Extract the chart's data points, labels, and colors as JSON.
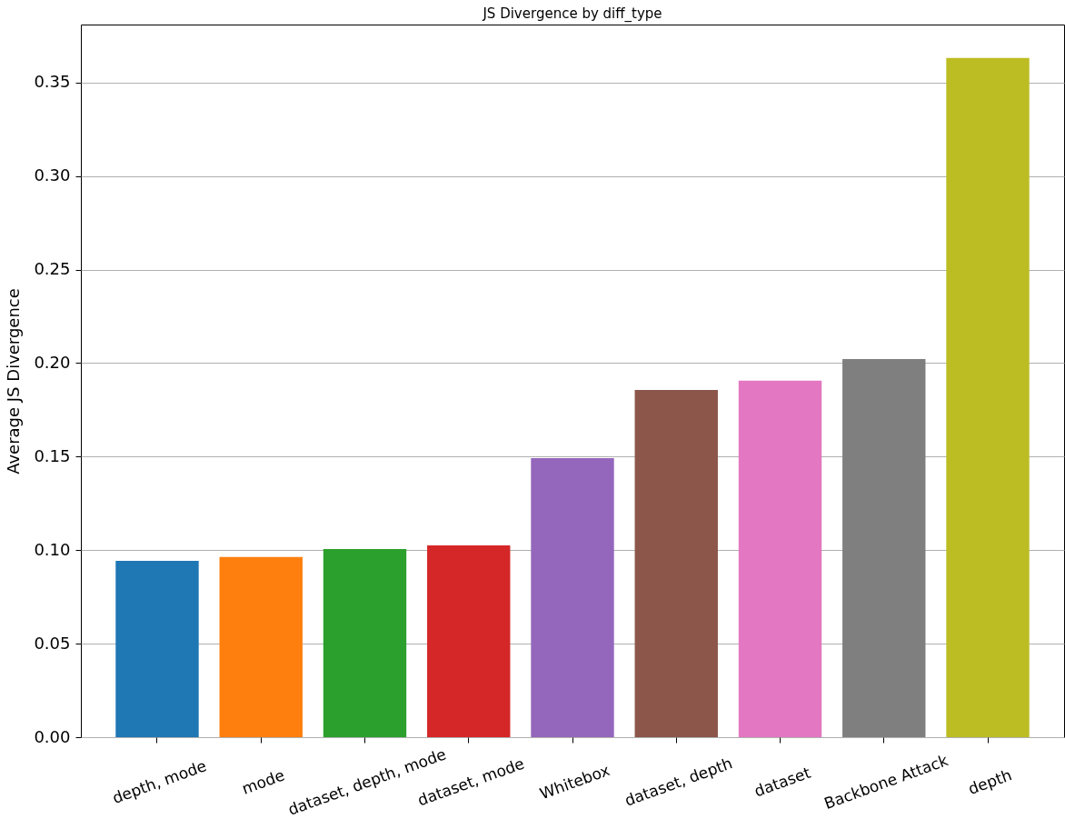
{
  "chart_data": {
    "type": "bar",
    "title": "JS Divergence by diff_type",
    "ylabel": "Average JS Divergence",
    "categories": [
      "depth, mode",
      "mode",
      "dataset, depth, mode",
      "dataset, mode",
      "Whitebox",
      "dataset, depth",
      "dataset",
      "Backbone Attack",
      "depth"
    ],
    "values": [
      0.0943,
      0.0963,
      0.1006,
      0.1026,
      0.1492,
      0.1857,
      0.1906,
      0.2022,
      0.3631
    ],
    "colors": [
      "#1f77b4",
      "#ff7f0e",
      "#2ca02c",
      "#d62728",
      "#9467bd",
      "#8c564b",
      "#e377c2",
      "#7f7f7f",
      "#bcbd22"
    ],
    "ylim": [
      0,
      0.381
    ],
    "yticks": [
      {
        "value": 0,
        "label": "0.00"
      },
      {
        "value": 0.05,
        "label": "0.05"
      },
      {
        "value": 0.1,
        "label": "0.10"
      },
      {
        "value": 0.15,
        "label": "0.15"
      },
      {
        "value": 0.2,
        "label": "0.20"
      },
      {
        "value": 0.25,
        "label": "0.25"
      },
      {
        "value": 0.3,
        "label": "0.30"
      },
      {
        "value": 0.35,
        "label": "0.35"
      }
    ],
    "grid": "y"
  }
}
